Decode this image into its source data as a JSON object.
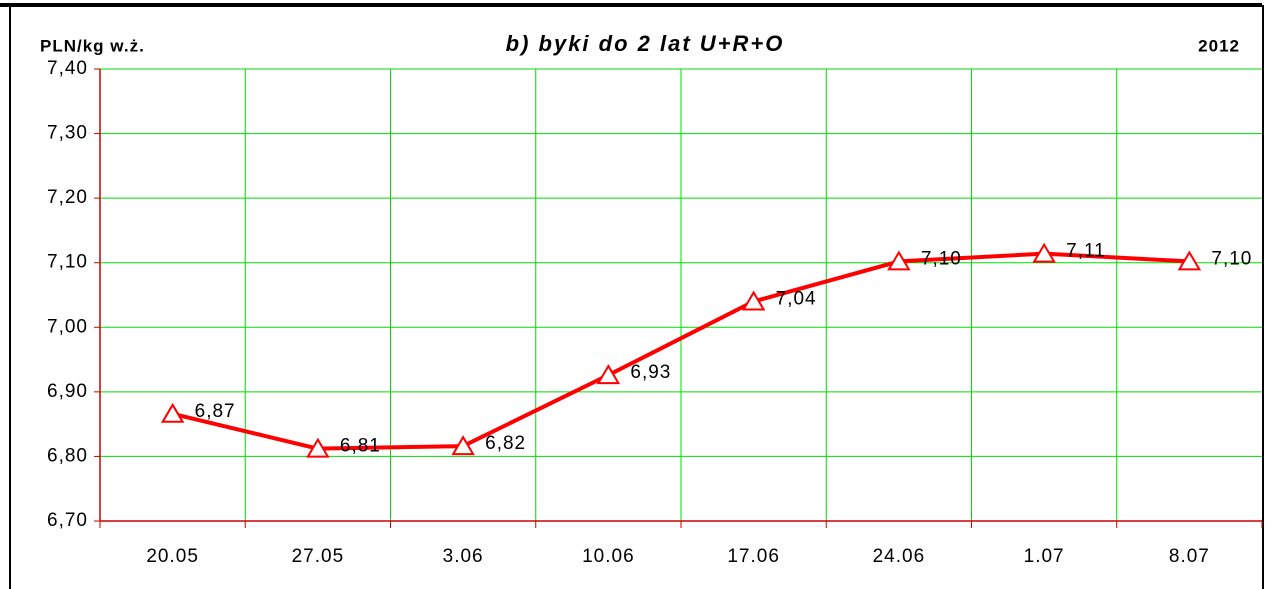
{
  "chart_data": {
    "type": "line",
    "title": "b) byki do 2 lat U+R+O",
    "y_axis_label": "PLN/kg w.ż.",
    "annotation": "2012",
    "categories": [
      "20.05",
      "27.05",
      "3.06",
      "10.06",
      "17.06",
      "24.06",
      "1.07",
      "8.07"
    ],
    "series": [
      {
        "name": "b) byki do 2 lat U+R+O",
        "color": "#ff0000",
        "values": [
          6.866,
          6.812,
          6.816,
          6.926,
          7.04,
          7.102,
          7.114,
          7.102
        ],
        "value_labels": [
          "6,87",
          "6,81",
          "6,82",
          "6,93",
          "7,04",
          "7,10",
          "7,11",
          "7,10"
        ]
      }
    ],
    "ylim": [
      6.7,
      7.4
    ],
    "yticks": [
      {
        "value": 6.7,
        "label": "6,70"
      },
      {
        "value": 6.8,
        "label": "6,80"
      },
      {
        "value": 6.9,
        "label": "6,90"
      },
      {
        "value": 7.0,
        "label": "7,00"
      },
      {
        "value": 7.1,
        "label": "7,10"
      },
      {
        "value": 7.2,
        "label": "7,20"
      },
      {
        "value": 7.3,
        "label": "7,30"
      },
      {
        "value": 7.4,
        "label": "7,40"
      }
    ],
    "grid": true,
    "grid_color": "#00dd00",
    "axis_color": "#cc0000"
  }
}
